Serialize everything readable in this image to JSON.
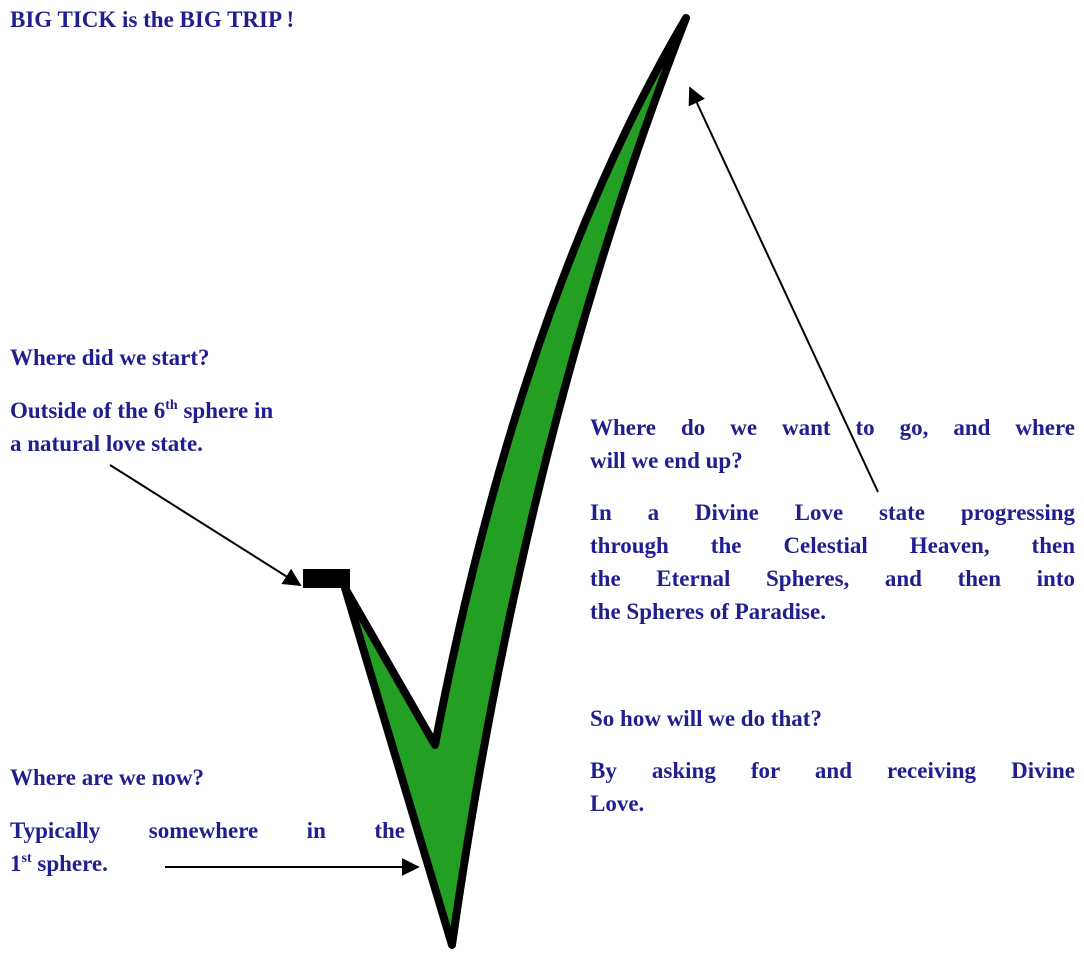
{
  "title": "BIG TICK is the BIG TRIP !",
  "start": {
    "question": "Where did we start?",
    "answer": [
      [
        "Outside of the 6",
        "th",
        " sphere in"
      ],
      "a natural love state."
    ]
  },
  "now": {
    "question": "Where are we now?",
    "answer": [
      "Typically somewhere in the",
      [
        "1",
        "st",
        " sphere."
      ]
    ]
  },
  "goal": {
    "question": [
      "Where do we want to go, and where",
      "will we end up?"
    ],
    "answer": [
      "In a Divine Love state progressing",
      "through the Celestial Heaven, then",
      "the Eternal Spheres, and then into",
      "the Spheres of Paradise."
    ]
  },
  "how": {
    "question": "So how will we do that?",
    "answer": [
      "By asking for and receiving Divine",
      "Love."
    ]
  }
}
